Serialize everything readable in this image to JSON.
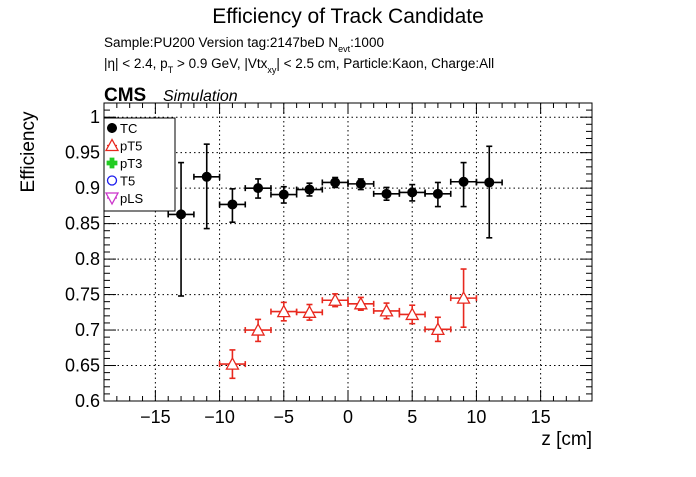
{
  "chart_data": {
    "type": "scatter",
    "title": "Efficiency of Track Candidate",
    "subtitle_line1_prefix": "Sample:PU200   Version tag:2147beD  N",
    "subtitle_line1_sub": "evt",
    "subtitle_line1_suffix": ":1000",
    "subtitle_line2_parts": [
      {
        "text": "|η| < 2.4, p",
        "sub": false
      },
      {
        "text": "T",
        "sub": true
      },
      {
        "text": " > 0.9 GeV, |Vtx",
        "sub": false
      },
      {
        "text": "xy",
        "sub": true
      },
      {
        "text": "| < 2.5 cm, Particle:Kaon, Charge:All",
        "sub": false
      }
    ],
    "cms_label": "CMS",
    "simulation_label": "Simulation",
    "xlabel": "z [cm]",
    "ylabel": "Efficiency",
    "xlim": [
      -19,
      19
    ],
    "ylim": [
      0.6,
      1.02
    ],
    "x_ticks": [
      -15,
      -10,
      -5,
      0,
      5,
      10,
      15
    ],
    "x_tick_labels": [
      "−15",
      "−10",
      "−5",
      "0",
      "5",
      "10",
      "15"
    ],
    "y_ticks": [
      0.6,
      0.65,
      0.7,
      0.75,
      0.8,
      0.85,
      0.9,
      0.95,
      1.0
    ],
    "y_tick_labels": [
      "0.6",
      "0.65",
      "0.7",
      "0.75",
      "0.8",
      "0.85",
      "0.9",
      "0.95",
      "1"
    ],
    "grid": true,
    "legend_position": "top-left",
    "series": [
      {
        "name": "TC",
        "color": "#000000",
        "marker": "circle-filled",
        "points": [
          {
            "x": -13,
            "xerr": 1,
            "y": 0.863,
            "yerr_up": 0.073,
            "yerr_down": 0.115
          },
          {
            "x": -11,
            "xerr": 1,
            "y": 0.916,
            "yerr_up": 0.046,
            "yerr_down": 0.073
          },
          {
            "x": -9,
            "xerr": 1,
            "y": 0.877,
            "yerr_up": 0.022,
            "yerr_down": 0.025
          },
          {
            "x": -7,
            "xerr": 1,
            "y": 0.9,
            "yerr_up": 0.013,
            "yerr_down": 0.014
          },
          {
            "x": -5,
            "xerr": 1,
            "y": 0.891,
            "yerr_up": 0.011,
            "yerr_down": 0.012
          },
          {
            "x": -3,
            "xerr": 1,
            "y": 0.898,
            "yerr_up": 0.009,
            "yerr_down": 0.009
          },
          {
            "x": -1,
            "xerr": 1,
            "y": 0.908,
            "yerr_up": 0.007,
            "yerr_down": 0.007
          },
          {
            "x": 1,
            "xerr": 1,
            "y": 0.906,
            "yerr_up": 0.007,
            "yerr_down": 0.008
          },
          {
            "x": 3,
            "xerr": 1,
            "y": 0.892,
            "yerr_up": 0.009,
            "yerr_down": 0.009
          },
          {
            "x": 5,
            "xerr": 1,
            "y": 0.894,
            "yerr_up": 0.011,
            "yerr_down": 0.012
          },
          {
            "x": 7,
            "xerr": 1,
            "y": 0.892,
            "yerr_up": 0.016,
            "yerr_down": 0.018
          },
          {
            "x": 9,
            "xerr": 1,
            "y": 0.909,
            "yerr_up": 0.027,
            "yerr_down": 0.035
          },
          {
            "x": 11,
            "xerr": 1,
            "y": 0.908,
            "yerr_up": 0.051,
            "yerr_down": 0.078
          }
        ]
      },
      {
        "name": "pT5",
        "color": "#e8281e",
        "marker": "triangle-open",
        "points": [
          {
            "x": -9,
            "xerr": 1,
            "y": 0.652,
            "yerr_up": 0.02,
            "yerr_down": 0.02
          },
          {
            "x": -7,
            "xerr": 1,
            "y": 0.7,
            "yerr_up": 0.015,
            "yerr_down": 0.016
          },
          {
            "x": -5,
            "xerr": 1,
            "y": 0.726,
            "yerr_up": 0.013,
            "yerr_down": 0.013
          },
          {
            "x": -3,
            "xerr": 1,
            "y": 0.725,
            "yerr_up": 0.011,
            "yerr_down": 0.011
          },
          {
            "x": -1,
            "xerr": 1,
            "y": 0.742,
            "yerr_up": 0.009,
            "yerr_down": 0.009
          },
          {
            "x": 1,
            "xerr": 1,
            "y": 0.737,
            "yerr_up": 0.009,
            "yerr_down": 0.009
          },
          {
            "x": 3,
            "xerr": 1,
            "y": 0.727,
            "yerr_up": 0.011,
            "yerr_down": 0.011
          },
          {
            "x": 5,
            "xerr": 1,
            "y": 0.722,
            "yerr_up": 0.013,
            "yerr_down": 0.013
          },
          {
            "x": 7,
            "xerr": 1,
            "y": 0.701,
            "yerr_up": 0.017,
            "yerr_down": 0.017
          },
          {
            "x": 9,
            "xerr": 1,
            "y": 0.745,
            "yerr_up": 0.041,
            "yerr_down": 0.041
          }
        ]
      },
      {
        "name": "pT3",
        "color": "#22cc22",
        "marker": "cross-filled",
        "points": []
      },
      {
        "name": "T5",
        "color": "#1a1aee",
        "marker": "circle-open",
        "points": []
      },
      {
        "name": "pLS",
        "color": "#cc33cc",
        "marker": "triangle-down-open",
        "points": []
      }
    ]
  }
}
